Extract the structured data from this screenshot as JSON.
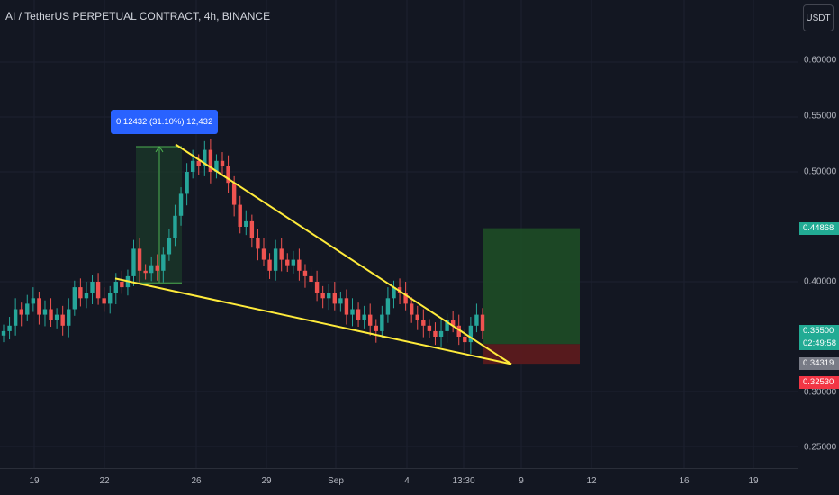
{
  "header": {
    "title": "AI / TetherUS PERPETUAL CONTRACT, 4h, BINANCE"
  },
  "price_axis": {
    "currency": "USDT",
    "ticks": [
      "0.60000",
      "0.55000",
      "0.50000",
      "0.40000",
      "0.30000",
      "0.25000"
    ],
    "labels": {
      "target": "0.44868",
      "current": "0.35500",
      "countdown": "02:49:58",
      "entry": "0.34319",
      "stop": "0.32530"
    }
  },
  "time_axis": {
    "ticks": [
      "19",
      "22",
      "26",
      "29",
      "Sep",
      "4",
      "13:30",
      "9",
      "12",
      "16",
      "19"
    ]
  },
  "measure": {
    "label": "0.12432 (31.10%) 12,432"
  },
  "colors": {
    "background": "#131722",
    "up": "#26a69a",
    "down": "#ef5350",
    "wedge_lines": "#ffeb3b",
    "target_zone": "#1e4d26",
    "stop_zone": "#5b1a1e",
    "measure_box": "#2962ff"
  },
  "chart_data": {
    "type": "candlestick",
    "symbol": "AI / TetherUS PERPETUAL CONTRACT",
    "interval": "4h",
    "exchange": "BINANCE",
    "ylim": [
      0.24,
      0.64
    ],
    "y_ticks": [
      0.25,
      0.3,
      0.4,
      0.5,
      0.55,
      0.6
    ],
    "x_ticks": [
      "19",
      "22",
      "26",
      "29",
      "Sep",
      "4",
      "13:30",
      "9",
      "12",
      "16",
      "19"
    ],
    "close_path": [
      0.355,
      0.36,
      0.375,
      0.37,
      0.38,
      0.385,
      0.37,
      0.375,
      0.365,
      0.37,
      0.36,
      0.375,
      0.395,
      0.385,
      0.39,
      0.4,
      0.385,
      0.38,
      0.39,
      0.4,
      0.395,
      0.405,
      0.43,
      0.41,
      0.408,
      0.415,
      0.41,
      0.425,
      0.44,
      0.46,
      0.48,
      0.5,
      0.51,
      0.505,
      0.52,
      0.5,
      0.51,
      0.505,
      0.49,
      0.47,
      0.45,
      0.455,
      0.44,
      0.43,
      0.42,
      0.41,
      0.43,
      0.42,
      0.415,
      0.42,
      0.41,
      0.405,
      0.4,
      0.39,
      0.385,
      0.39,
      0.38,
      0.385,
      0.37,
      0.375,
      0.365,
      0.37,
      0.36,
      0.355,
      0.37,
      0.385,
      0.395,
      0.39,
      0.38,
      0.37,
      0.365,
      0.36,
      0.355,
      0.35,
      0.355,
      0.365,
      0.36,
      0.35,
      0.345,
      0.36,
      0.37,
      0.355
    ],
    "annotations": {
      "measure_range": {
        "from_price": 0.399,
        "to_price": 0.523,
        "change": "0.12432 (31.10%) 12,432"
      },
      "falling_wedge": {
        "upper_line": [
          {
            "x": "25",
            "y": 0.525
          },
          {
            "x": "13:30",
            "y": 0.33
          }
        ],
        "lower_line": [
          {
            "x": "22",
            "y": 0.403
          },
          {
            "x": "13:30",
            "y": 0.33
          }
        ]
      },
      "long_position": {
        "entry": 0.34319,
        "target": 0.44868,
        "stop": 0.3253
      },
      "current_price": 0.355
    }
  }
}
